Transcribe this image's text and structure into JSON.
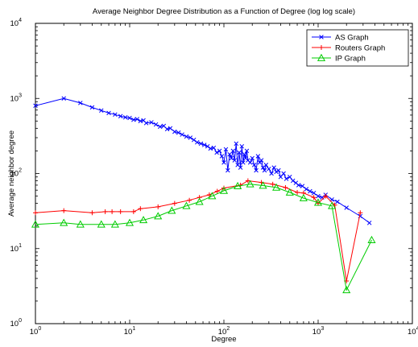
{
  "chart_data": {
    "type": "line",
    "title": "Average Neighbor Degree Distribution as a Function of Degree (log log scale)",
    "xlabel": "Degree",
    "ylabel": "Average neighbor degree",
    "xscale": "log",
    "yscale": "log",
    "xlim": [
      1,
      10000
    ],
    "ylim": [
      1,
      10000
    ],
    "xticks": [
      {
        "value": 1,
        "base": "10",
        "exp": "0"
      },
      {
        "value": 10,
        "base": "10",
        "exp": "1"
      },
      {
        "value": 100,
        "base": "10",
        "exp": "2"
      },
      {
        "value": 1000,
        "base": "10",
        "exp": "3"
      },
      {
        "value": 10000,
        "base": "10",
        "exp": "4"
      }
    ],
    "yticks": [
      {
        "value": 1,
        "base": "10",
        "exp": "0"
      },
      {
        "value": 10,
        "base": "10",
        "exp": "1"
      },
      {
        "value": 100,
        "base": "10",
        "exp": "2"
      },
      {
        "value": 1000,
        "base": "10",
        "exp": "3"
      },
      {
        "value": 10000,
        "base": "10",
        "exp": "4"
      }
    ],
    "grid": false,
    "legend_position": "top-right",
    "series": [
      {
        "name": "AS Graph",
        "color": "#0000ff",
        "marker": "x",
        "x": [
          1,
          2,
          3,
          4,
          5,
          6,
          7,
          8,
          9,
          10,
          11,
          12,
          13,
          14,
          15,
          17,
          19,
          21,
          23,
          25,
          27,
          30,
          33,
          36,
          40,
          44,
          48,
          52,
          57,
          62,
          67,
          72,
          78,
          84,
          90,
          95,
          100,
          105,
          110,
          115,
          120,
          125,
          130,
          135,
          140,
          145,
          150,
          155,
          160,
          165,
          170,
          175,
          180,
          190,
          200,
          210,
          220,
          230,
          240,
          250,
          260,
          270,
          280,
          300,
          320,
          340,
          360,
          380,
          400,
          430,
          460,
          500,
          540,
          580,
          620,
          680,
          750,
          820,
          900,
          1000,
          1100,
          1200,
          1400,
          1600,
          2000,
          2800,
          3500
        ],
        "y": [
          800,
          1000,
          870,
          760,
          690,
          640,
          610,
          580,
          560,
          550,
          520,
          530,
          500,
          510,
          470,
          480,
          450,
          420,
          430,
          390,
          400,
          360,
          350,
          330,
          310,
          300,
          280,
          260,
          250,
          240,
          230,
          215,
          220,
          190,
          200,
          170,
          140,
          210,
          110,
          180,
          160,
          200,
          150,
          250,
          130,
          190,
          120,
          230,
          140,
          180,
          160,
          200,
          150,
          140,
          160,
          130,
          110,
          170,
          140,
          150,
          120,
          110,
          130,
          115,
          100,
          120,
          105,
          110,
          90,
          100,
          85,
          90,
          80,
          75,
          70,
          68,
          62,
          58,
          55,
          50,
          48,
          52,
          45,
          42,
          35,
          27,
          22
        ]
      },
      {
        "name": "Routers Graph",
        "color": "#ff0000",
        "marker": "+",
        "x": [
          1,
          2,
          4,
          5.5,
          6.5,
          8,
          11,
          13,
          20,
          30,
          43,
          55,
          70,
          85,
          100,
          150,
          180,
          250,
          330,
          450,
          600,
          700,
          900,
          1000,
          1200,
          1500,
          2000,
          2800
        ],
        "y": [
          30,
          32,
          30,
          31,
          31,
          31,
          31,
          34,
          36,
          40,
          44,
          48,
          52,
          58,
          64,
          70,
          80,
          76,
          72,
          65,
          56,
          55,
          48,
          40,
          50,
          38,
          3.7,
          30
        ]
      },
      {
        "name": "IP Graph",
        "color": "#00cc00",
        "marker": "triangle",
        "x": [
          1,
          2,
          3,
          5,
          7,
          10,
          14,
          20,
          28,
          40,
          55,
          75,
          100,
          140,
          190,
          260,
          360,
          500,
          700,
          1000,
          1400,
          2000,
          3700
        ],
        "y": [
          21,
          22,
          21,
          21,
          21,
          22,
          24,
          27,
          32,
          37,
          42,
          50,
          59,
          68,
          72,
          69,
          65,
          56,
          47,
          41,
          37,
          2.8,
          13
        ]
      }
    ]
  }
}
